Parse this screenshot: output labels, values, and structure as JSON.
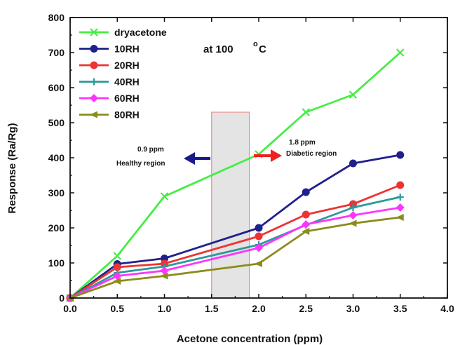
{
  "chart_data": {
    "type": "line",
    "xlabel": "Acetone concentration (ppm)",
    "ylabel": "Response (Ra/Rg)",
    "xlim": [
      0,
      4.0
    ],
    "ylim": [
      0,
      800
    ],
    "x_ticks": [
      "0.0",
      "0.5",
      "1.0",
      "1.5",
      "2.0",
      "2.5",
      "3.0",
      "3.5",
      "4.0"
    ],
    "y_ticks": [
      "0",
      "100",
      "200",
      "300",
      "400",
      "500",
      "600",
      "700",
      "800"
    ],
    "grid": false,
    "legend_position": "top-left",
    "x": [
      0.0,
      0.5,
      1.0,
      2.0,
      2.5,
      3.0,
      3.5
    ],
    "series": [
      {
        "name": "dryacetone",
        "color": "#44ee44",
        "marker": "x",
        "values": [
          0,
          120,
          290,
          410,
          530,
          580,
          700
        ]
      },
      {
        "name": "10RH",
        "color": "#20208c",
        "marker": "circle",
        "values": [
          0,
          97,
          113,
          200,
          302,
          384,
          408
        ]
      },
      {
        "name": "20RH",
        "color": "#ee3333",
        "marker": "circle",
        "values": [
          0,
          88,
          98,
          176,
          238,
          268,
          322
        ]
      },
      {
        "name": "40RH",
        "color": "#2a9a9a",
        "marker": "plus",
        "values": [
          0,
          72,
          90,
          152,
          208,
          258,
          288
        ]
      },
      {
        "name": "60RH",
        "color": "#ff33ff",
        "marker": "diamond",
        "values": [
          0,
          63,
          78,
          143,
          210,
          236,
          258
        ]
      },
      {
        "name": "80RH",
        "color": "#8c8c1a",
        "marker": "triangle-left",
        "values": [
          0,
          48,
          63,
          98,
          190,
          213,
          230
        ]
      }
    ],
    "annotations": {
      "temperature": "at 100",
      "temperature_unit": "C",
      "degree_mark": "o",
      "healthy_ppm": "0.9 ppm",
      "healthy_label": "Healthy region",
      "diabetic_ppm": "1.8 ppm",
      "diabetic_label": "Diabetic region",
      "region_x": [
        1.5,
        1.9
      ],
      "region_y": [
        0,
        530
      ]
    }
  }
}
